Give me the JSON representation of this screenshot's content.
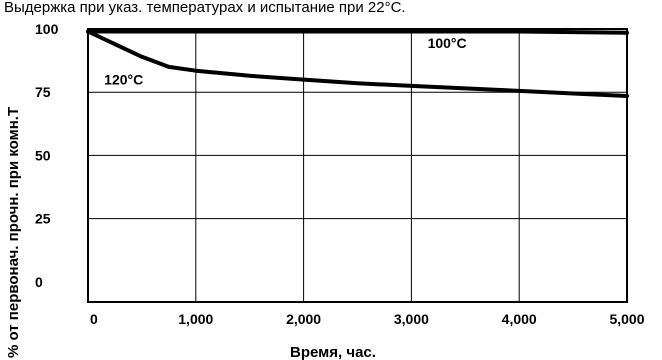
{
  "chart_data": {
    "type": "line",
    "title": "Выдержка при указ. температурах и испытание при  22°C.",
    "xlabel": "Время, час.",
    "ylabel": "% от первонач. прочн. при комн.Т",
    "xlim": [
      0,
      5000
    ],
    "ylim": [
      -8,
      100
    ],
    "x_ticks": [
      0,
      1000,
      2000,
      3000,
      4000,
      5000
    ],
    "x_tick_labels": [
      "0",
      "1,000",
      "2,000",
      "3,000",
      "4,000",
      "5,000"
    ],
    "y_ticks": [
      0,
      25,
      50,
      75,
      100
    ],
    "y_tick_labels": [
      "0",
      "25",
      "50",
      "75",
      "100"
    ],
    "grid": true,
    "series": [
      {
        "name": "100°C",
        "x": [
          0,
          1000,
          2000,
          3000,
          4000,
          5000
        ],
        "y": [
          99,
          99,
          99,
          99,
          99,
          98.5
        ]
      },
      {
        "name": "120°C",
        "x": [
          0,
          250,
          500,
          750,
          1000,
          1500,
          2000,
          2500,
          3000,
          3500,
          4000,
          4500,
          5000
        ],
        "y": [
          99,
          94,
          89,
          85,
          83.5,
          81.5,
          80,
          78.5,
          77.5,
          76.5,
          75.5,
          74.5,
          73.5
        ]
      }
    ]
  }
}
